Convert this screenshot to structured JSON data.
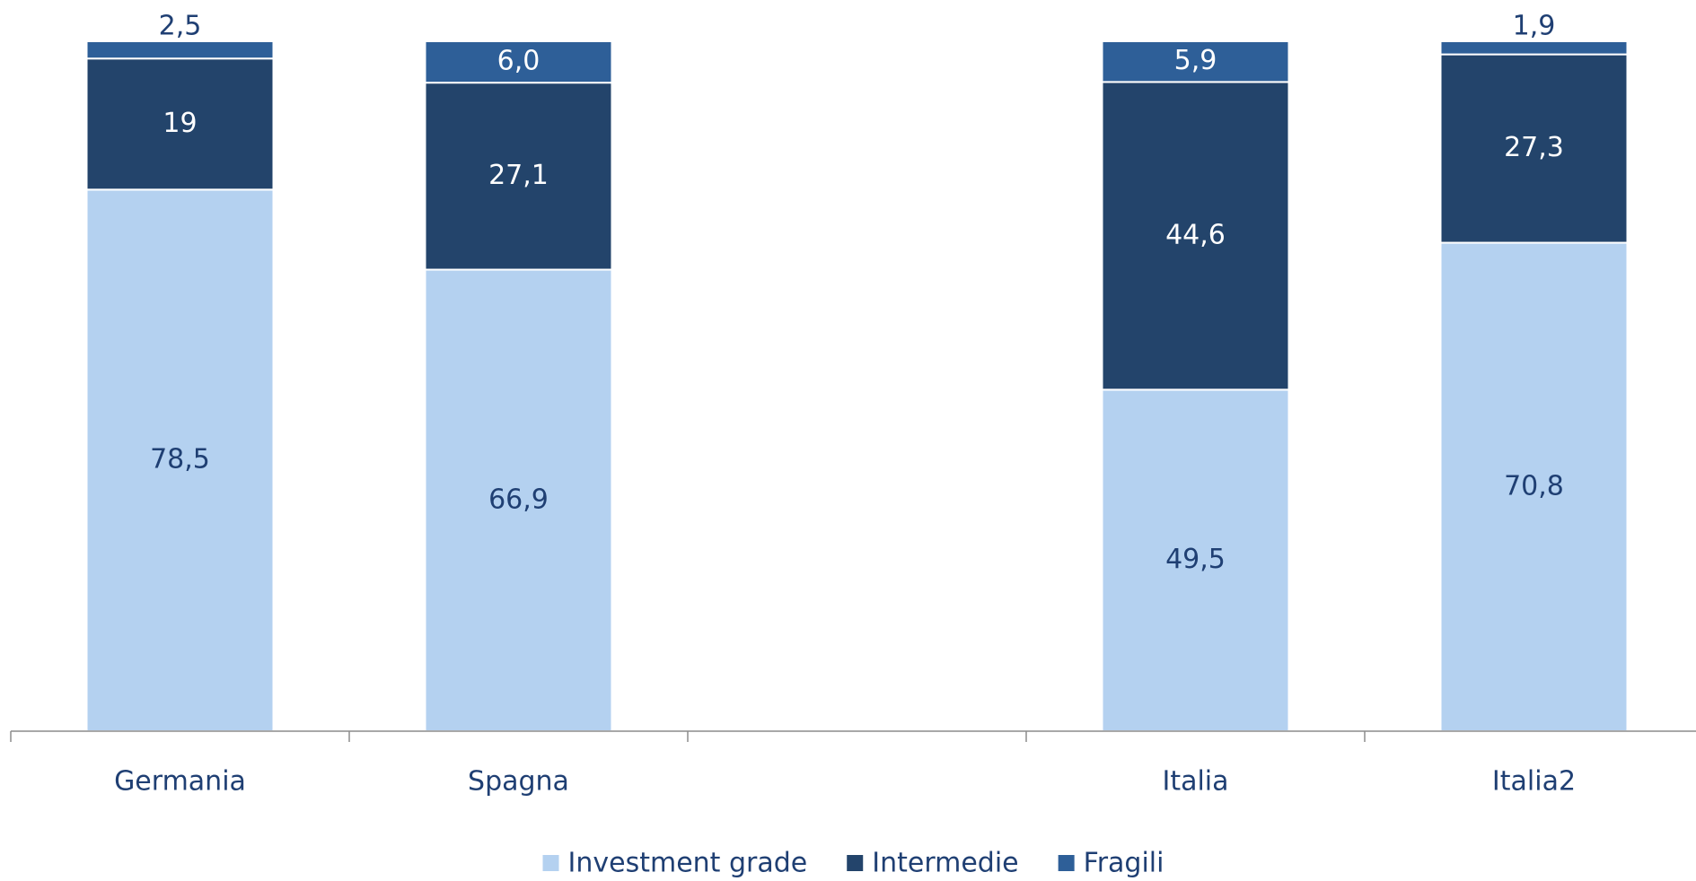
{
  "chart_data": {
    "type": "stacked-bar",
    "categories": [
      "Germania",
      "Spagna",
      null,
      "Italia",
      "Italia2"
    ],
    "series": [
      {
        "name": "Investment grade",
        "color": "#b4d1f0",
        "values": [
          78.5,
          66.9,
          null,
          49.5,
          70.8
        ],
        "value_labels": [
          "78,5",
          "66,9",
          null,
          "49,5",
          "70,8"
        ]
      },
      {
        "name": "Intermedie",
        "color": "#23446b",
        "values": [
          19,
          27.1,
          null,
          44.6,
          27.3
        ],
        "value_labels": [
          "19",
          "27,1",
          null,
          "44,6",
          "27,3"
        ]
      },
      {
        "name": "Fragili",
        "color": "#2e5f98",
        "values": [
          2.5,
          6.0,
          null,
          5.9,
          1.9
        ],
        "value_labels": [
          "2,5",
          "6,0",
          null,
          "5,9",
          "1,9"
        ]
      }
    ],
    "ylim": [
      0,
      100
    ],
    "legend": "bottom"
  }
}
